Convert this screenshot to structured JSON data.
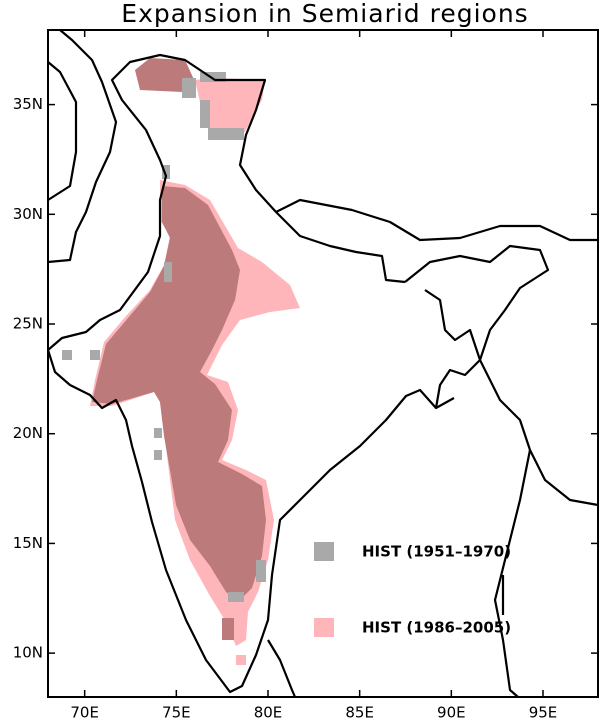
{
  "title": "Expansion in Semiarid regions",
  "map": {
    "xlim": [
      68,
      98
    ],
    "ylim": [
      8,
      38.4
    ],
    "xticks": [
      {
        "value": 70,
        "label": "70E"
      },
      {
        "value": 75,
        "label": "75E"
      },
      {
        "value": 80,
        "label": "80E"
      },
      {
        "value": 85,
        "label": "85E"
      },
      {
        "value": 90,
        "label": "90E"
      },
      {
        "value": 95,
        "label": "95E"
      }
    ],
    "yticks": [
      {
        "value": 10,
        "label": "10N"
      },
      {
        "value": 15,
        "label": "15N"
      },
      {
        "value": 20,
        "label": "20N"
      },
      {
        "value": 25,
        "label": "25N"
      },
      {
        "value": 30,
        "label": "30N"
      },
      {
        "value": 35,
        "label": "35N"
      }
    ]
  },
  "legend": [
    {
      "label": "HIST (1951–1970)",
      "color": "#a9a9a9",
      "text_color": "#000000"
    },
    {
      "label": "HIST (1986–2005)",
      "color": "#ffb6bb",
      "text_color": "#e8262c"
    }
  ]
}
